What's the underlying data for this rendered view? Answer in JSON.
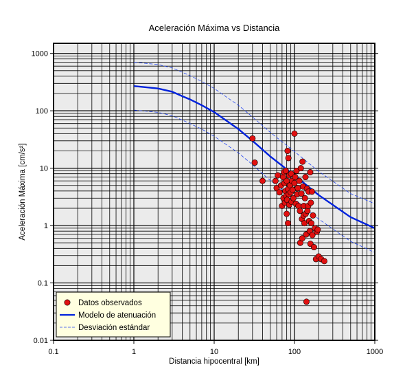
{
  "chart_data": {
    "type": "scatter",
    "title": "Aceleración Máxima vs Distancia",
    "xlabel": "Distancia hipocentral [km]",
    "ylabel": "Aceleración Máxima [cm/s²]",
    "x_scale": "log",
    "y_scale": "log",
    "xlim": [
      0.1,
      1000
    ],
    "ylim": [
      0.01,
      1500
    ],
    "xticks": [
      {
        "value": 0.1,
        "label": "0.1"
      },
      {
        "value": 1,
        "label": "1"
      },
      {
        "value": 10,
        "label": "10"
      },
      {
        "value": 100,
        "label": "100"
      },
      {
        "value": 1000,
        "label": "1000"
      }
    ],
    "yticks": [
      {
        "value": 0.01,
        "label": "0.01"
      },
      {
        "value": 0.1,
        "label": "0.1"
      },
      {
        "value": 1,
        "label": "1"
      },
      {
        "value": 10,
        "label": "10"
      },
      {
        "value": 100,
        "label": "100"
      },
      {
        "value": 1000,
        "label": "1000"
      }
    ],
    "grid": true,
    "legend_position": "bottom-left",
    "colors": {
      "plot_background": "#ebebeb",
      "legend_background": "#ffffe0",
      "points": "#e01010",
      "model": "#0022dd",
      "deviation": "#2244ee"
    },
    "series": [
      {
        "name": "Datos observados",
        "kind": "scatter",
        "points": [
          [
            30,
            33
          ],
          [
            32,
            12.5
          ],
          [
            40,
            6
          ],
          [
            58,
            6
          ],
          [
            60,
            4.5
          ],
          [
            62,
            7.5
          ],
          [
            65,
            3.8
          ],
          [
            68,
            5
          ],
          [
            70,
            2.2
          ],
          [
            72,
            7
          ],
          [
            73,
            3
          ],
          [
            74,
            8.5
          ],
          [
            75,
            5.5
          ],
          [
            76,
            2.5
          ],
          [
            77,
            4
          ],
          [
            78,
            9
          ],
          [
            79,
            3.3
          ],
          [
            80,
            6
          ],
          [
            80,
            1.6
          ],
          [
            81,
            2.8
          ],
          [
            82,
            20
          ],
          [
            83,
            4.3
          ],
          [
            83,
            1.1
          ],
          [
            84,
            15
          ],
          [
            85,
            3.5
          ],
          [
            86,
            7.5
          ],
          [
            86,
            2.3
          ],
          [
            88,
            5
          ],
          [
            90,
            3.8
          ],
          [
            91,
            8
          ],
          [
            92,
            2.6
          ],
          [
            93,
            6
          ],
          [
            95,
            4.2
          ],
          [
            97,
            3
          ],
          [
            100,
            40
          ],
          [
            100,
            5.5
          ],
          [
            102,
            7
          ],
          [
            104,
            2.4
          ],
          [
            106,
            9
          ],
          [
            108,
            3.5
          ],
          [
            110,
            4.5
          ],
          [
            112,
            2.2
          ],
          [
            115,
            6
          ],
          [
            117,
            1.8
          ],
          [
            118,
            0.5
          ],
          [
            120,
            10
          ],
          [
            122,
            3.6
          ],
          [
            124,
            1.3
          ],
          [
            125,
            0.6
          ],
          [
            126,
            13
          ],
          [
            128,
            4.8
          ],
          [
            130,
            1.5
          ],
          [
            131,
            2.2
          ],
          [
            133,
            1.1
          ],
          [
            135,
            3
          ],
          [
            137,
            7
          ],
          [
            138,
            1.6
          ],
          [
            140,
            0.7
          ],
          [
            141,
            0.047
          ],
          [
            143,
            4.4
          ],
          [
            145,
            1.8
          ],
          [
            148,
            2.2
          ],
          [
            150,
            3.9
          ],
          [
            152,
            1.2
          ],
          [
            155,
            0.8
          ],
          [
            157,
            8.5
          ],
          [
            158,
            0.48
          ],
          [
            160,
            2.5
          ],
          [
            162,
            1.1
          ],
          [
            165,
            3.9
          ],
          [
            167,
            0.68
          ],
          [
            170,
            1.5
          ],
          [
            175,
            0.42
          ],
          [
            180,
            0.9
          ],
          [
            185,
            0.26
          ],
          [
            190,
            0.78
          ],
          [
            195,
            0.85
          ],
          [
            200,
            0.29
          ],
          [
            215,
            0.26
          ],
          [
            235,
            0.24
          ]
        ]
      },
      {
        "name": "Modelo de atenuación",
        "kind": "line",
        "points": [
          [
            1,
            270
          ],
          [
            2,
            245
          ],
          [
            3,
            215
          ],
          [
            4,
            180
          ],
          [
            5,
            158
          ],
          [
            7,
            125
          ],
          [
            10,
            95
          ],
          [
            20,
            48
          ],
          [
            30,
            30
          ],
          [
            50,
            16
          ],
          [
            100,
            7.5
          ],
          [
            200,
            3.4
          ],
          [
            500,
            1.4
          ],
          [
            1000,
            0.9
          ]
        ]
      },
      {
        "name": "Desviación estándar",
        "kind": "line",
        "points": [
          [
            1,
            700
          ],
          [
            2,
            640
          ],
          [
            3,
            560
          ],
          [
            4,
            470
          ],
          [
            5,
            410
          ],
          [
            7,
            325
          ],
          [
            10,
            245
          ],
          [
            20,
            125
          ],
          [
            30,
            78
          ],
          [
            50,
            42
          ],
          [
            100,
            19.5
          ],
          [
            200,
            8.8
          ],
          [
            500,
            3.6
          ],
          [
            1000,
            2.4
          ]
        ]
      },
      {
        "name": "",
        "kind": "line",
        "points": [
          [
            1,
            103
          ],
          [
            2,
            94
          ],
          [
            3,
            82
          ],
          [
            4,
            69
          ],
          [
            5,
            60
          ],
          [
            7,
            48
          ],
          [
            10,
            36
          ],
          [
            20,
            18.5
          ],
          [
            30,
            11.5
          ],
          [
            50,
            6.1
          ],
          [
            100,
            2.9
          ],
          [
            200,
            1.3
          ],
          [
            500,
            0.53
          ],
          [
            1000,
            0.34
          ]
        ]
      }
    ]
  }
}
